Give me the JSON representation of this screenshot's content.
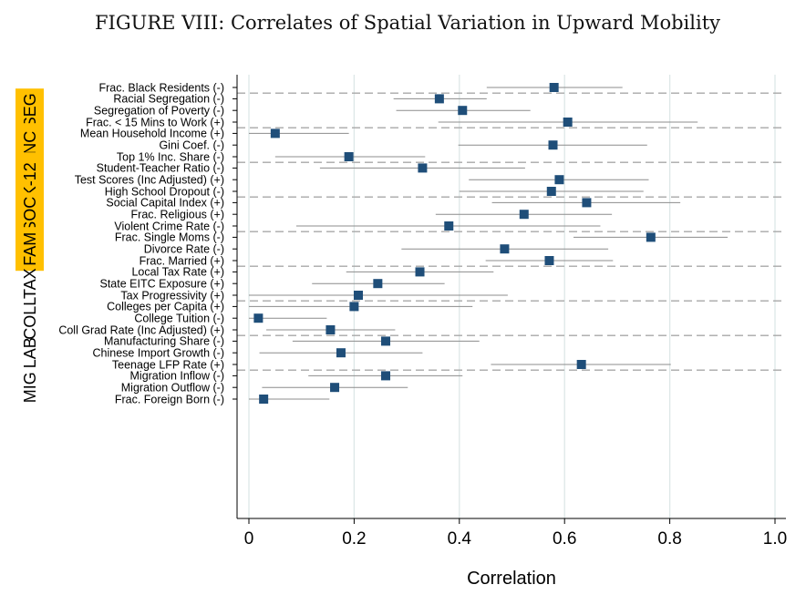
{
  "title": "FIGURE VIII: Correlates of Spatial Variation in Upward Mobility",
  "chart_data": {
    "type": "scatter",
    "subtype": "dot-and-whisker",
    "title": "FIGURE VIII: Correlates of Spatial Variation in Upward Mobility",
    "xlabel": "Correlation",
    "xlim": [
      -0.02,
      1.02
    ],
    "xticks": [
      0,
      0.2,
      0.4,
      0.6,
      0.8,
      1.0
    ],
    "xtick_labels": [
      "0",
      "0.2",
      "0.4",
      "0.6",
      "0.8",
      "1.0"
    ],
    "grid": "vertical",
    "marker_color": "#1f4e79",
    "group_highlight_color": "#ffc000",
    "groups": [
      {
        "name": "",
        "highlighted": false,
        "items": [
          {
            "label": "Frac. Black Residents (-)",
            "value": 0.58,
            "ci": [
              0.452,
              0.71
            ]
          }
        ]
      },
      {
        "name": "SEG",
        "highlighted": true,
        "items": [
          {
            "label": "Racial Segregation (-)",
            "value": 0.362,
            "ci": [
              0.275,
              0.452
            ]
          },
          {
            "label": "Segregation of Poverty (-)",
            "value": 0.406,
            "ci": [
              0.28,
              0.535
            ]
          },
          {
            "label": "Frac. < 15 Mins to Work (+)",
            "value": 0.606,
            "ci": [
              0.36,
              0.853
            ]
          }
        ]
      },
      {
        "name": "INC",
        "highlighted": true,
        "items": [
          {
            "label": "Mean Household Income (+)",
            "value": 0.05,
            "ci": [
              0.0,
              0.19
            ]
          },
          {
            "label": "Gini Coef. (-)",
            "value": 0.578,
            "ci": [
              0.398,
              0.757
            ]
          },
          {
            "label": "Top 1% Inc. Share (-)",
            "value": 0.19,
            "ci": [
              0.05,
              0.335
            ]
          }
        ]
      },
      {
        "name": "K-12",
        "highlighted": true,
        "items": [
          {
            "label": "Student-Teacher Ratio (-)",
            "value": 0.33,
            "ci": [
              0.135,
              0.525
            ]
          },
          {
            "label": "Test Scores (Inc Adjusted) (+)",
            "value": 0.59,
            "ci": [
              0.418,
              0.76
            ]
          },
          {
            "label": "High School Dropout (-)",
            "value": 0.575,
            "ci": [
              0.4,
              0.75
            ]
          }
        ]
      },
      {
        "name": "SOC",
        "highlighted": true,
        "items": [
          {
            "label": "Social Capital Index (+)",
            "value": 0.642,
            "ci": [
              0.462,
              0.82
            ]
          },
          {
            "label": "Frac. Religious (+)",
            "value": 0.523,
            "ci": [
              0.355,
              0.69
            ]
          },
          {
            "label": "Violent Crime Rate (-)",
            "value": 0.38,
            "ci": [
              0.09,
              0.668
            ]
          }
        ]
      },
      {
        "name": "FAM",
        "highlighted": true,
        "items": [
          {
            "label": "Frac. Single Moms (-)",
            "value": 0.764,
            "ci": [
              0.617,
              0.91
            ]
          },
          {
            "label": "Divorce Rate (-)",
            "value": 0.486,
            "ci": [
              0.29,
              0.683
            ]
          },
          {
            "label": "Frac. Married (+)",
            "value": 0.571,
            "ci": [
              0.45,
              0.692
            ]
          }
        ]
      },
      {
        "name": "TAX",
        "highlighted": false,
        "items": [
          {
            "label": "Local Tax Rate (+)",
            "value": 0.325,
            "ci": [
              0.185,
              0.465
            ]
          },
          {
            "label": "State EITC Exposure (+)",
            "value": 0.245,
            "ci": [
              0.12,
              0.372
            ]
          },
          {
            "label": "Tax Progressivity (+)",
            "value": 0.208,
            "ci": [
              0.0,
              0.492
            ]
          }
        ]
      },
      {
        "name": "COLL",
        "highlighted": false,
        "items": [
          {
            "label": "Colleges per Capita (+)",
            "value": 0.2,
            "ci": [
              0.0,
              0.425
            ]
          },
          {
            "label": "College Tuition (-)",
            "value": 0.018,
            "ci": [
              0.0,
              0.148
            ]
          },
          {
            "label": "Coll Grad Rate (Inc Adjusted) (+)",
            "value": 0.155,
            "ci": [
              0.033,
              0.278
            ]
          }
        ]
      },
      {
        "name": "LAB",
        "highlighted": false,
        "items": [
          {
            "label": "Manufacturing Share (-)",
            "value": 0.26,
            "ci": [
              0.083,
              0.438
            ]
          },
          {
            "label": "Chinese Import Growth (-)",
            "value": 0.175,
            "ci": [
              0.02,
              0.33
            ]
          },
          {
            "label": "Teenage LFP Rate (+)",
            "value": 0.632,
            "ci": [
              0.46,
              0.802
            ]
          }
        ]
      },
      {
        "name": "MIG",
        "highlighted": false,
        "items": [
          {
            "label": "Migration Inflow (-)",
            "value": 0.26,
            "ci": [
              0.113,
              0.406
            ]
          },
          {
            "label": "Migration Outflow (-)",
            "value": 0.163,
            "ci": [
              0.025,
              0.302
            ]
          },
          {
            "label": "Frac. Foreign Born (-)",
            "value": 0.028,
            "ci": [
              0.0,
              0.153
            ]
          }
        ]
      }
    ]
  }
}
